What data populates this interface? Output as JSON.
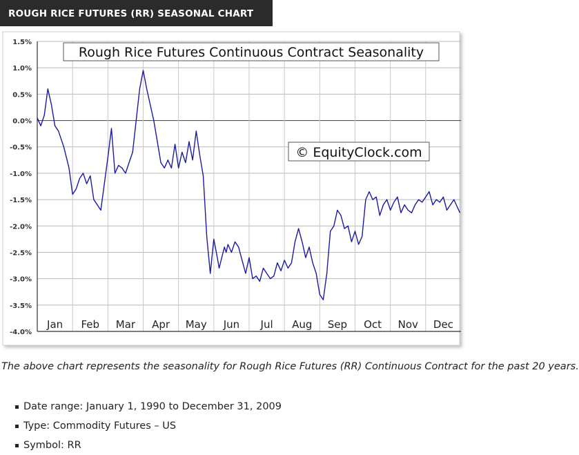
{
  "header": {
    "title": "ROUGH RICE FUTURES (RR) SEASONAL CHART",
    "background": "#2b2b2b",
    "text_color": "#ffffff"
  },
  "chart_data": {
    "type": "line",
    "title": "Rough Rice Futures Continuous Contract Seasonality",
    "watermark": "© EquityClock.com",
    "xlabel": "",
    "ylabel": "",
    "months": [
      "Jan",
      "Feb",
      "Mar",
      "Apr",
      "May",
      "Jun",
      "Jul",
      "Aug",
      "Sep",
      "Oct",
      "Nov",
      "Dec"
    ],
    "y_ticks": [
      1.5,
      1.0,
      0.5,
      0.0,
      -0.5,
      -1.0,
      -1.5,
      -2.0,
      -2.5,
      -3.0,
      -3.5,
      -4.0
    ],
    "y_tick_labels": [
      "1.5%",
      "1.0%",
      "0.5%",
      "0.0%",
      "-0.5%",
      "-1.0%",
      "-1.5%",
      "-2.0%",
      "-2.5%",
      "-3.0%",
      "-3.5%",
      "-4.0%"
    ],
    "ylim": [
      -4.0,
      1.5
    ],
    "xlim": [
      0,
      12
    ],
    "grid": true,
    "line_color": "#1a1aa0",
    "series": [
      {
        "x": [
          0.0,
          0.1,
          0.2,
          0.3,
          0.4,
          0.5,
          0.6,
          0.75,
          0.9,
          1.0,
          1.1,
          1.2,
          1.3,
          1.4,
          1.5,
          1.6,
          1.7,
          1.8,
          1.9,
          2.0,
          2.1,
          2.2,
          2.3,
          2.4,
          2.5,
          2.6,
          2.7,
          2.8,
          2.9,
          3.0,
          3.1,
          3.2,
          3.3,
          3.4,
          3.5,
          3.6,
          3.7,
          3.8,
          3.9,
          4.0,
          4.1,
          4.2,
          4.3,
          4.4,
          4.5,
          4.6,
          4.7,
          4.8,
          4.9,
          5.0,
          5.1,
          5.15,
          5.3,
          5.35,
          5.4,
          5.5,
          5.6,
          5.7,
          5.8,
          5.9,
          6.0,
          6.1,
          6.2,
          6.3,
          6.4,
          6.5,
          6.6,
          6.7,
          6.8,
          6.9,
          7.0,
          7.1,
          7.2,
          7.3,
          7.4,
          7.5,
          7.6,
          7.7,
          7.8,
          7.9,
          8.0,
          8.1,
          8.2,
          8.3,
          8.4,
          8.5,
          8.6,
          8.7,
          8.8,
          8.9,
          9.0,
          9.1,
          9.2,
          9.3,
          9.4,
          9.5,
          9.6,
          9.7,
          9.8,
          9.9,
          10.0,
          10.1,
          10.2,
          10.3,
          10.4,
          10.5,
          10.6,
          10.7,
          10.8,
          10.9,
          11.0,
          11.1,
          11.2,
          11.3,
          11.4,
          11.5,
          11.6,
          11.7,
          11.8,
          11.9,
          11.97
        ],
        "y": [
          0.05,
          -0.1,
          0.1,
          0.6,
          0.3,
          -0.1,
          -0.2,
          -0.5,
          -0.9,
          -1.4,
          -1.3,
          -1.1,
          -1.0,
          -1.2,
          -1.05,
          -1.5,
          -1.6,
          -1.7,
          -1.2,
          -0.7,
          -0.15,
          -1.0,
          -0.85,
          -0.9,
          -1.0,
          -0.8,
          -0.6,
          0.0,
          0.6,
          0.95,
          0.6,
          0.3,
          0.0,
          -0.4,
          -0.8,
          -0.9,
          -0.75,
          -0.9,
          -0.45,
          -0.9,
          -0.6,
          -0.8,
          -0.4,
          -0.75,
          -0.2,
          -0.65,
          -1.05,
          -2.2,
          -2.9,
          -2.25,
          -2.6,
          -2.8,
          -2.4,
          -2.5,
          -2.35,
          -2.5,
          -2.3,
          -2.4,
          -2.65,
          -2.9,
          -2.6,
          -3.0,
          -2.95,
          -3.05,
          -2.8,
          -2.9,
          -3.0,
          -2.95,
          -2.7,
          -2.85,
          -2.65,
          -2.8,
          -2.7,
          -2.3,
          -2.05,
          -2.3,
          -2.6,
          -2.4,
          -2.7,
          -2.9,
          -3.3,
          -3.4,
          -2.9,
          -2.1,
          -2.0,
          -1.7,
          -1.8,
          -2.05,
          -2.0,
          -2.3,
          -2.1,
          -2.35,
          -2.2,
          -1.5,
          -1.35,
          -1.5,
          -1.45,
          -1.8,
          -1.6,
          -1.5,
          -1.7,
          -1.55,
          -1.45,
          -1.75,
          -1.6,
          -1.7,
          -1.75,
          -1.6,
          -1.5,
          -1.55,
          -1.45,
          -1.35,
          -1.6,
          -1.5,
          -1.55,
          -1.45,
          -1.7,
          -1.6,
          -1.5,
          -1.65,
          -1.75
        ]
      }
    ]
  },
  "caption": "The above chart represents the seasonality for Rough Rice Futures (RR) Continuous Contract for the past 20 years.",
  "facts": [
    "Date range: January 1, 1990 to December 31, 2009",
    "Type: Commodity Futures – US",
    "Symbol: RR"
  ]
}
